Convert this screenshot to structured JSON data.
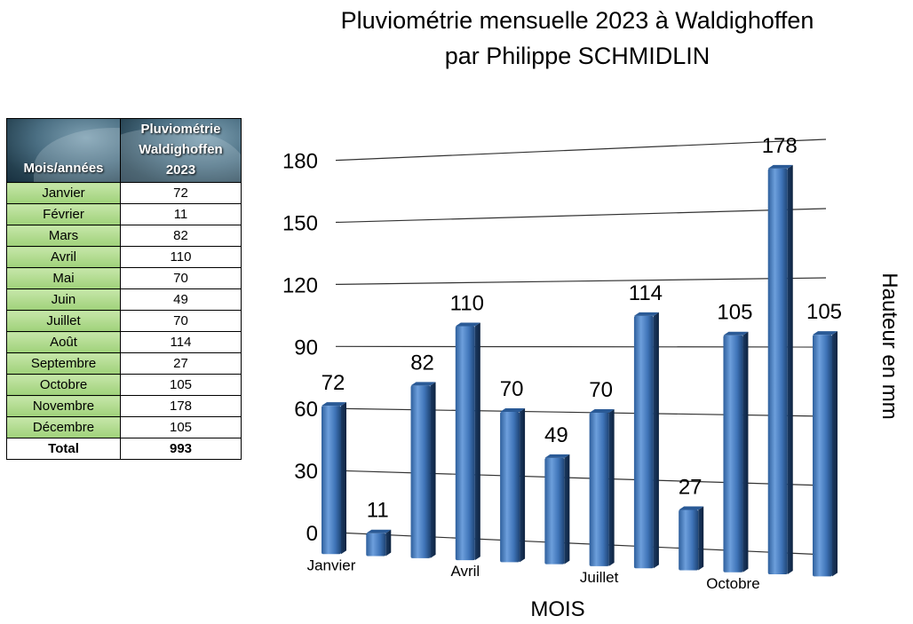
{
  "title_line1": "Pluviométrie mensuelle 2023 à Waldighoffen",
  "title_line2": "par Philippe SCHMIDLIN",
  "table": {
    "header_month": "Mois/années",
    "header_value": [
      "Pluviométrie",
      "Waldighoffen",
      "2023"
    ],
    "rows": [
      {
        "month": "Janvier",
        "value": "72"
      },
      {
        "month": "Février",
        "value": "11"
      },
      {
        "month": "Mars",
        "value": "82"
      },
      {
        "month": "Avril",
        "value": "110"
      },
      {
        "month": "Mai",
        "value": "70"
      },
      {
        "month": "Juin",
        "value": "49"
      },
      {
        "month": "Juillet",
        "value": "70"
      },
      {
        "month": "Août",
        "value": "114"
      },
      {
        "month": "Septembre",
        "value": "27"
      },
      {
        "month": "Octobre",
        "value": "105"
      },
      {
        "month": "Novembre",
        "value": "178"
      },
      {
        "month": "Décembre",
        "value": "105"
      }
    ],
    "total_label": "Total",
    "total_value": "993"
  },
  "chart_data": {
    "type": "bar",
    "categories": [
      "Janvier",
      "Février",
      "Mars",
      "Avril",
      "Mai",
      "Juin",
      "Juillet",
      "Août",
      "Septembre",
      "Octobre",
      "Novembre",
      "Décembre"
    ],
    "values": [
      72,
      11,
      82,
      110,
      70,
      49,
      70,
      114,
      27,
      105,
      178,
      105
    ],
    "data_labels": [
      "72",
      "11",
      "82",
      "110",
      "70",
      "49",
      "70",
      "114",
      "27",
      "105",
      "178",
      "105"
    ],
    "shown_category_labels": [
      "Janvier",
      "Avril",
      "Juillet",
      "Octobre"
    ],
    "xlabel": "MOIS",
    "ylabel": "Hauteur en mm",
    "yticks": [
      0,
      30,
      60,
      90,
      120,
      150,
      180
    ],
    "ylim": [
      0,
      180
    ],
    "grid": true,
    "bar_color": "#4a7fc1"
  }
}
